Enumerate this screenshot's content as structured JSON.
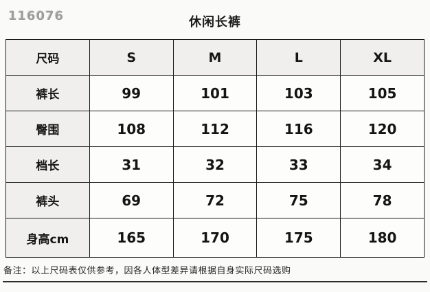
{
  "watermark": "116076",
  "title": "休闲长裤",
  "table": {
    "header": [
      "尺码",
      "S",
      "M",
      "L",
      "XL"
    ],
    "rows": [
      {
        "label": "裤长",
        "values": [
          "99",
          "101",
          "103",
          "105"
        ]
      },
      {
        "label": "臀围",
        "values": [
          "108",
          "112",
          "116",
          "120"
        ]
      },
      {
        "label": "档长",
        "values": [
          "31",
          "32",
          "33",
          "34"
        ]
      },
      {
        "label": "裤头",
        "values": [
          "69",
          "72",
          "75",
          "78"
        ]
      },
      {
        "label": "身高cm",
        "values": [
          "165",
          "170",
          "175",
          "180"
        ]
      }
    ]
  },
  "note": "备注：以上尺码表仅供参考，因各人体型差异请根据自身实际尺码选购",
  "colors": {
    "page_background": "#fafaf8",
    "table_border": "#1b1b1b",
    "header_cell_background": "#f0efed",
    "data_cell_background": "#fdfdfb",
    "watermark_gray": "#9d9d9b",
    "text_black": "#141414"
  }
}
